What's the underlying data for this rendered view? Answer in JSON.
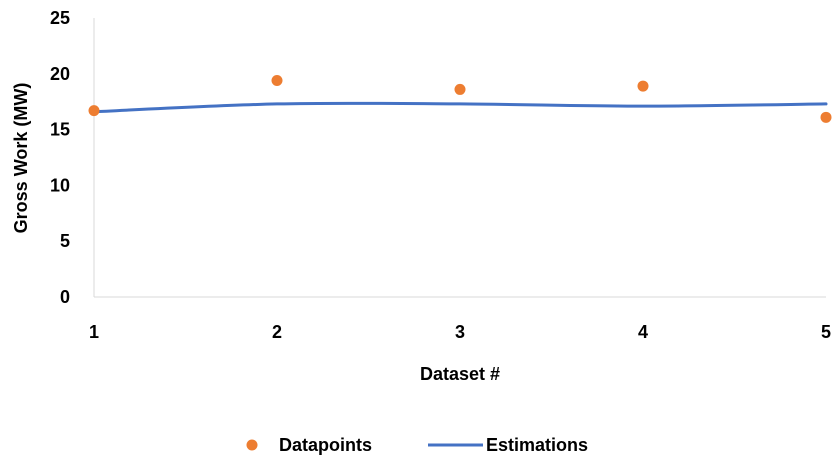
{
  "chart_data": {
    "type": "line",
    "title": "",
    "xlabel": "Dataset #",
    "ylabel": "Gross Work (MW)",
    "x": [
      1,
      2,
      3,
      4,
      5
    ],
    "x_tick_labels": [
      "1",
      "2",
      "3",
      "4",
      "5"
    ],
    "xlim": [
      1,
      5
    ],
    "ylim": [
      0,
      25
    ],
    "y_ticks": [
      0,
      5,
      10,
      15,
      20,
      25
    ],
    "y_tick_labels": [
      "0",
      "5",
      "10",
      "15",
      "20",
      "25"
    ],
    "grid": false,
    "legend_position": "bottom",
    "series": [
      {
        "name": "Datapoints",
        "kind": "scatter",
        "color": "#ED7D31",
        "values": [
          16.7,
          19.4,
          18.6,
          18.9,
          16.1
        ]
      },
      {
        "name": "Estimations",
        "kind": "smooth-line",
        "color": "#4472C4",
        "values": [
          16.6,
          17.3,
          17.3,
          17.1,
          17.3
        ]
      }
    ]
  }
}
